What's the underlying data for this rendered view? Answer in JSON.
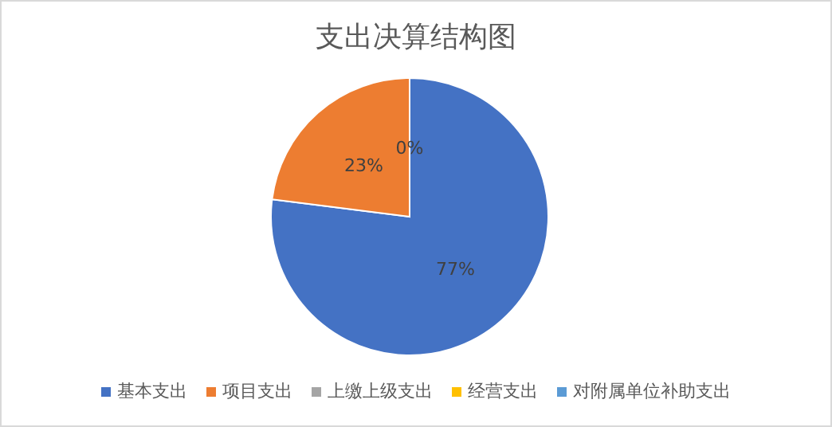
{
  "chart_data": {
    "type": "pie",
    "title": "支出决算结构图",
    "categories": [
      "基本支出",
      "项目支出",
      "上缴上级支出",
      "经营支出",
      "对附属单位补助支出"
    ],
    "values": [
      77,
      23,
      0,
      0,
      0
    ],
    "colors": [
      "#4472c4",
      "#ed7d31",
      "#a5a5a5",
      "#ffc000",
      "#5b9bd5"
    ],
    "value_labels": [
      "77%",
      "23%",
      "0%",
      null,
      null
    ],
    "legend": "bottom"
  }
}
